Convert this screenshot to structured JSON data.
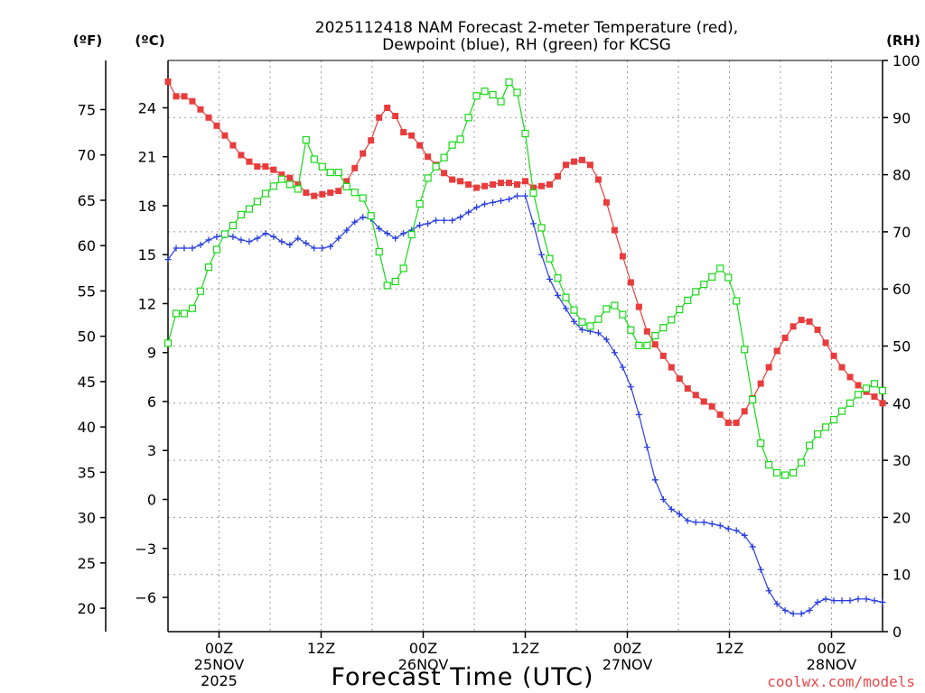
{
  "chart_data": {
    "type": "line",
    "title_lines": [
      "2025112418 NAM Forecast 2-meter Temperature (red),",
      "Dewpoint (blue), RH (green) for KCSG"
    ],
    "units": {
      "left_f": "(ºF)",
      "left_c": "(ºC)",
      "right_rh": "(RH)"
    },
    "xlabel": "Forecast Time (UTC)",
    "watermark": "coolwx.com/models",
    "x_range_hours": [
      0,
      84
    ],
    "x_ticks": [
      {
        "hour": 6,
        "lines": [
          "00Z",
          "25NOV",
          "2025"
        ]
      },
      {
        "hour": 18,
        "lines": [
          "12Z"
        ]
      },
      {
        "hour": 30,
        "lines": [
          "00Z",
          "26NOV"
        ]
      },
      {
        "hour": 42,
        "lines": [
          "12Z"
        ]
      },
      {
        "hour": 54,
        "lines": [
          "00Z",
          "27NOV"
        ]
      },
      {
        "hour": 66,
        "lines": [
          "12Z"
        ]
      },
      {
        "hour": 78,
        "lines": [
          "00Z",
          "28NOV"
        ]
      }
    ],
    "y_celsius_range": [
      -8.1,
      26.9
    ],
    "y_celsius_ticks": [
      24,
      21,
      18,
      15,
      12,
      9,
      6,
      3,
      0,
      -3,
      -6
    ],
    "y_celsius_tick_labels": [
      "24",
      "21",
      "18",
      "15",
      "12",
      "9",
      "6",
      "3",
      "0",
      "−3",
      "−6"
    ],
    "y_fahrenheit_ticks": [
      75,
      70,
      65,
      60,
      55,
      50,
      45,
      40,
      35,
      30,
      25,
      20
    ],
    "y_fahrenheit_tick_labels": [
      "75",
      "70",
      "65",
      "60",
      "55",
      "50",
      "45",
      "40",
      "35",
      "30",
      "25",
      "20"
    ],
    "y_rh_range": [
      0,
      100
    ],
    "y_rh_ticks": [
      100,
      90,
      80,
      70,
      60,
      50,
      40,
      30,
      20,
      10,
      0
    ],
    "y_rh_tick_labels": [
      "100",
      "90",
      "80",
      "70",
      "60",
      "50",
      "40",
      "30",
      "20",
      "10",
      "0"
    ],
    "grid": true,
    "series": [
      {
        "name": "2-meter Temperature",
        "unit": "°C",
        "color": "#e83c3c",
        "marker": "filled-square",
        "values": [
          25.6,
          24.7,
          24.7,
          24.4,
          23.9,
          23.4,
          22.9,
          22.3,
          21.7,
          21.1,
          20.7,
          20.4,
          20.4,
          20.2,
          19.9,
          19.7,
          19.3,
          18.8,
          18.6,
          18.7,
          18.8,
          18.9,
          19.5,
          20.3,
          21.2,
          22.0,
          23.4,
          24.0,
          23.5,
          22.5,
          22.3,
          21.7,
          21.0,
          20.5,
          20.0,
          19.6,
          19.5,
          19.3,
          19.1,
          19.2,
          19.3,
          19.4,
          19.4,
          19.3,
          19.5,
          19.1,
          19.2,
          19.3,
          19.8,
          20.5,
          20.7,
          20.8,
          20.5,
          19.6,
          18.2,
          16.5,
          14.9,
          13.3,
          11.8,
          10.3,
          9.5,
          8.8,
          8.1,
          7.4,
          6.8,
          6.4,
          6.0,
          5.7,
          5.2,
          4.7,
          4.7,
          5.4,
          6.2,
          7.1,
          8.1,
          9.1,
          9.9,
          10.6,
          11.0,
          10.9,
          10.4,
          9.6,
          8.8,
          8.1,
          7.5,
          7.0,
          6.6,
          6.3,
          5.9
        ]
      },
      {
        "name": "Dewpoint",
        "unit": "°C",
        "color": "#2a3ee0",
        "marker": "plus",
        "values": [
          14.7,
          15.4,
          15.4,
          15.4,
          15.6,
          15.9,
          16.1,
          16.2,
          16.1,
          15.9,
          15.8,
          16.0,
          16.3,
          16.1,
          15.8,
          15.6,
          16.0,
          15.7,
          15.4,
          15.4,
          15.5,
          16.0,
          16.5,
          17.0,
          17.3,
          17.2,
          16.6,
          16.3,
          16.0,
          16.3,
          16.5,
          16.8,
          16.9,
          17.1,
          17.1,
          17.1,
          17.3,
          17.6,
          17.9,
          18.1,
          18.2,
          18.3,
          18.4,
          18.6,
          18.6,
          16.9,
          15.0,
          13.5,
          12.5,
          11.7,
          10.9,
          10.4,
          10.3,
          10.2,
          9.8,
          9.0,
          8.1,
          6.9,
          5.2,
          3.2,
          1.2,
          0.0,
          -0.6,
          -0.9,
          -1.3,
          -1.4,
          -1.4,
          -1.5,
          -1.6,
          -1.8,
          -1.9,
          -2.2,
          -2.9,
          -4.3,
          -5.6,
          -6.4,
          -6.8,
          -7.0,
          -7.0,
          -6.8,
          -6.3,
          -6.1,
          -6.2,
          -6.2,
          -6.2,
          -6.1,
          -6.1,
          -6.2,
          -6.3
        ]
      },
      {
        "name": "RH",
        "unit": "%",
        "color": "#18d818",
        "marker": "open-square",
        "values": [
          50.5,
          55.7,
          55.7,
          56.6,
          59.6,
          63.8,
          66.9,
          69.6,
          71.1,
          73.0,
          74.0,
          75.3,
          76.7,
          78.0,
          79.2,
          78.3,
          77.5,
          86.1,
          82.7,
          81.4,
          80.4,
          80.4,
          77.9,
          76.9,
          75.9,
          72.8,
          66.5,
          60.6,
          61.3,
          63.6,
          69.5,
          74.9,
          79.4,
          81.4,
          83.0,
          85.2,
          86.2,
          90.0,
          93.8,
          94.6,
          94.0,
          92.8,
          96.2,
          94.4,
          87.2,
          76.8,
          70.7,
          65.3,
          61.9,
          58.5,
          56.3,
          54.2,
          53.5,
          54.7,
          56.5,
          57.1,
          55.5,
          52.8,
          50.1,
          50.1,
          51.8,
          53.2,
          54.6,
          56.4,
          58.0,
          59.5,
          60.8,
          62.1,
          63.6,
          62.0,
          57.9,
          49.4,
          40.6,
          33.0,
          29.2,
          27.8,
          27.4,
          27.8,
          29.6,
          32.6,
          34.6,
          35.8,
          37.1,
          38.6,
          40.0,
          41.5,
          42.6,
          43.4,
          42.2
        ]
      }
    ]
  }
}
